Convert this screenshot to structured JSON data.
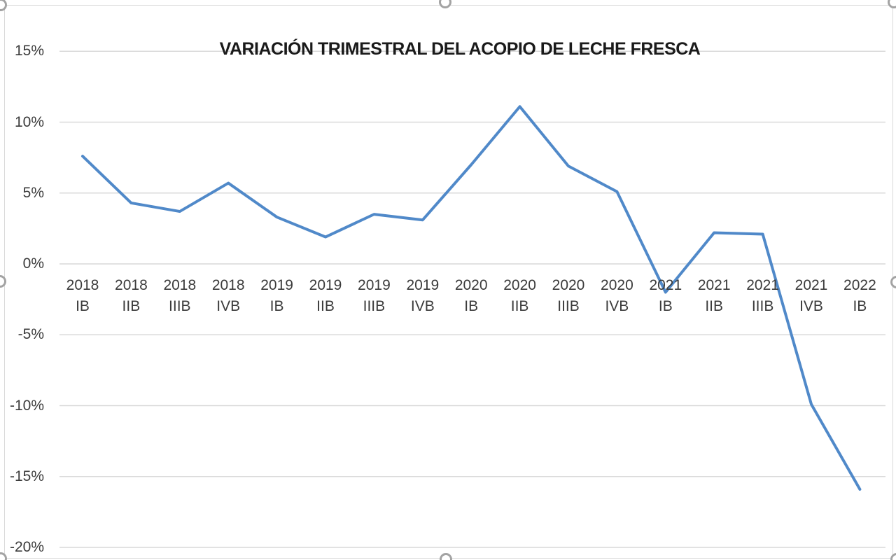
{
  "chart_data": {
    "type": "line",
    "title": "VARIACIÓN TRIMESTRAL DEL ACOPIO DE LECHE FRESCA",
    "categories": [
      "2018 IB",
      "2018 IIB",
      "2018 IIIB",
      "2018 IVB",
      "2019 IB",
      "2019 IIB",
      "2019 IIIB",
      "2019 IVB",
      "2020 IB",
      "2020 IIB",
      "2020 IIIB",
      "2020 IVB",
      "2021 IB",
      "2021 IIB",
      "2021 IIIB",
      "2021 IVB",
      "2022 IB"
    ],
    "values": [
      7.6,
      4.3,
      3.7,
      5.7,
      3.3,
      1.9,
      3.5,
      3.1,
      7.0,
      11.1,
      6.9,
      5.1,
      -2.0,
      2.2,
      2.1,
      -9.9,
      -15.9
    ],
    "ylim": [
      -20,
      15
    ],
    "ytick_step": 5,
    "ytick_labels": [
      "15%",
      "10%",
      "5%",
      "0%",
      "-5%",
      "-10%",
      "-15%",
      "-20%"
    ],
    "xlabel": "",
    "ylabel": "",
    "grid": true,
    "legend": "none",
    "line_color": "#5089c9",
    "gridline_color": "#d9d9d9",
    "axis_text_color": "#3b3b3b",
    "title_color": "#1a1a1a"
  },
  "chrome": {
    "border_color": "#d9d9d9",
    "handle_color": "#a3a3a3",
    "handles": [
      "top-left",
      "top-center",
      "top-right",
      "mid-left",
      "mid-right",
      "bottom-left",
      "bottom-center",
      "bottom-right"
    ]
  }
}
